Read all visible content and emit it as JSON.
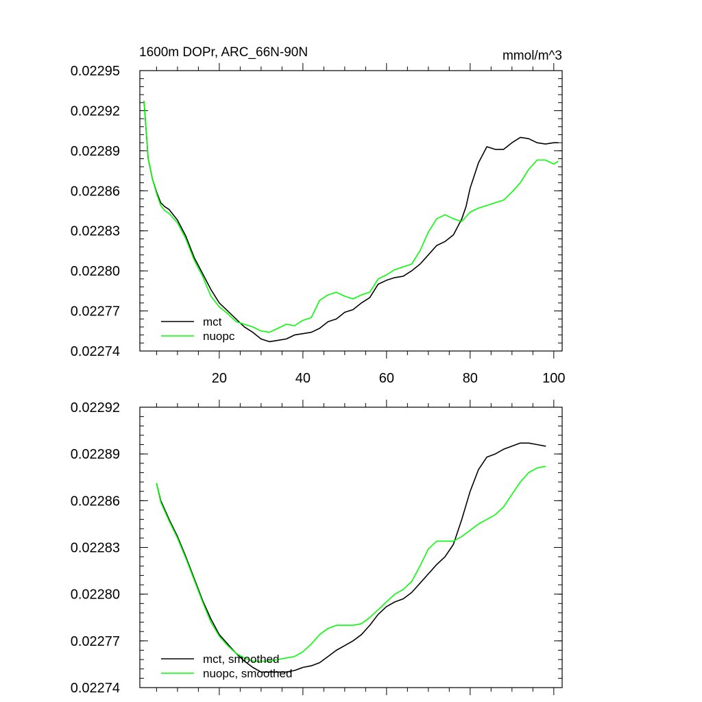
{
  "chart_data": [
    {
      "type": "line",
      "title": "1600m DOPr, ARC_66N-90N",
      "units": "mmol/m^3",
      "xlim": [
        1,
        102
      ],
      "ylim": [
        0.02274,
        0.02295
      ],
      "xticks": [
        20,
        40,
        60,
        80,
        100
      ],
      "xtick_labels": [
        "20",
        "40",
        "60",
        "80",
        "100"
      ],
      "yticks": [
        0.02274,
        0.02277,
        0.0228,
        0.02283,
        0.02286,
        0.02289,
        0.02292,
        0.02295
      ],
      "ytick_labels": [
        "0.02274",
        "0.02277",
        "0.02280",
        "0.02283",
        "0.02286",
        "0.02289",
        "0.02292",
        "0.02295"
      ],
      "legend_position": "bottom-left",
      "series": [
        {
          "name": "mct",
          "color": "#000000",
          "points": [
            [
              2,
              0.022927
            ],
            [
              3,
              0.022884
            ],
            [
              4,
              0.022869
            ],
            [
              5,
              0.022859
            ],
            [
              6,
              0.022851
            ],
            [
              7,
              0.022848
            ],
            [
              8,
              0.022846
            ],
            [
              10,
              0.022838
            ],
            [
              12,
              0.022826
            ],
            [
              14,
              0.02281
            ],
            [
              16,
              0.022798
            ],
            [
              18,
              0.022786
            ],
            [
              20,
              0.022776
            ],
            [
              22,
              0.02277
            ],
            [
              24,
              0.022764
            ],
            [
              26,
              0.022758
            ],
            [
              28,
              0.022754
            ],
            [
              30,
              0.022749
            ],
            [
              32,
              0.022747
            ],
            [
              34,
              0.022748
            ],
            [
              36,
              0.022749
            ],
            [
              38,
              0.022752
            ],
            [
              40,
              0.022753
            ],
            [
              42,
              0.022754
            ],
            [
              44,
              0.022757
            ],
            [
              46,
              0.022762
            ],
            [
              48,
              0.022764
            ],
            [
              50,
              0.022769
            ],
            [
              52,
              0.022771
            ],
            [
              54,
              0.022776
            ],
            [
              56,
              0.02278
            ],
            [
              58,
              0.02279
            ],
            [
              60,
              0.022793
            ],
            [
              62,
              0.022795
            ],
            [
              64,
              0.022796
            ],
            [
              66,
              0.0228
            ],
            [
              68,
              0.022805
            ],
            [
              70,
              0.022812
            ],
            [
              72,
              0.022819
            ],
            [
              74,
              0.022822
            ],
            [
              76,
              0.022827
            ],
            [
              78,
              0.022839
            ],
            [
              79,
              0.022848
            ],
            [
              80,
              0.022862
            ],
            [
              82,
              0.022881
            ],
            [
              84,
              0.022893
            ],
            [
              86,
              0.022891
            ],
            [
              88,
              0.022891
            ],
            [
              90,
              0.022896
            ],
            [
              92,
              0.0229
            ],
            [
              94,
              0.022899
            ],
            [
              96,
              0.022896
            ],
            [
              98,
              0.022895
            ],
            [
              100,
              0.022896
            ],
            [
              101,
              0.022896
            ]
          ]
        },
        {
          "name": "nuopc",
          "color": "#00ff00",
          "points": [
            [
              2,
              0.022927
            ],
            [
              3,
              0.022884
            ],
            [
              4,
              0.022869
            ],
            [
              5,
              0.022858
            ],
            [
              6,
              0.022849
            ],
            [
              7,
              0.022845
            ],
            [
              8,
              0.022843
            ],
            [
              10,
              0.022836
            ],
            [
              12,
              0.022824
            ],
            [
              14,
              0.022808
            ],
            [
              16,
              0.022796
            ],
            [
              18,
              0.022781
            ],
            [
              20,
              0.022773
            ],
            [
              22,
              0.022768
            ],
            [
              24,
              0.022762
            ],
            [
              26,
              0.02276
            ],
            [
              28,
              0.022758
            ],
            [
              30,
              0.022755
            ],
            [
              32,
              0.022754
            ],
            [
              34,
              0.022757
            ],
            [
              36,
              0.02276
            ],
            [
              38,
              0.022759
            ],
            [
              40,
              0.022763
            ],
            [
              42,
              0.022765
            ],
            [
              44,
              0.022778
            ],
            [
              46,
              0.022782
            ],
            [
              48,
              0.022784
            ],
            [
              50,
              0.022781
            ],
            [
              52,
              0.022779
            ],
            [
              54,
              0.022782
            ],
            [
              56,
              0.022784
            ],
            [
              58,
              0.022794
            ],
            [
              60,
              0.022797
            ],
            [
              62,
              0.022801
            ],
            [
              64,
              0.022803
            ],
            [
              66,
              0.022805
            ],
            [
              68,
              0.022815
            ],
            [
              70,
              0.022829
            ],
            [
              72,
              0.022839
            ],
            [
              74,
              0.022842
            ],
            [
              76,
              0.022839
            ],
            [
              78,
              0.022837
            ],
            [
              80,
              0.022844
            ],
            [
              82,
              0.022847
            ],
            [
              84,
              0.022849
            ],
            [
              86,
              0.022851
            ],
            [
              88,
              0.022853
            ],
            [
              90,
              0.022859
            ],
            [
              92,
              0.022866
            ],
            [
              94,
              0.022876
            ],
            [
              96,
              0.022883
            ],
            [
              98,
              0.022883
            ],
            [
              100,
              0.02288
            ],
            [
              101,
              0.022882
            ]
          ]
        }
      ]
    },
    {
      "type": "line",
      "title": "",
      "units": "",
      "xlim": [
        1,
        102
      ],
      "ylim": [
        0.02274,
        0.02292
      ],
      "xticks": [
        20,
        40,
        60,
        80,
        100
      ],
      "xtick_labels": [],
      "yticks": [
        0.02274,
        0.02277,
        0.0228,
        0.02283,
        0.02286,
        0.02289,
        0.02292
      ],
      "ytick_labels": [
        "0.02274",
        "0.02277",
        "0.02280",
        "0.02283",
        "0.02286",
        "0.02289",
        "0.02292"
      ],
      "legend_position": "bottom-left",
      "series": [
        {
          "name": "mct, smoothed",
          "color": "#000000",
          "points": [
            [
              5,
              0.022871
            ],
            [
              6,
              0.02286
            ],
            [
              8,
              0.022848
            ],
            [
              10,
              0.022837
            ],
            [
              12,
              0.022824
            ],
            [
              14,
              0.02281
            ],
            [
              16,
              0.022796
            ],
            [
              18,
              0.022784
            ],
            [
              20,
              0.022774
            ],
            [
              22,
              0.022768
            ],
            [
              24,
              0.022762
            ],
            [
              26,
              0.022757
            ],
            [
              28,
              0.022753
            ],
            [
              30,
              0.02275
            ],
            [
              32,
              0.02275
            ],
            [
              34,
              0.02275
            ],
            [
              36,
              0.02275
            ],
            [
              38,
              0.022751
            ],
            [
              40,
              0.022753
            ],
            [
              42,
              0.022754
            ],
            [
              44,
              0.022756
            ],
            [
              46,
              0.02276
            ],
            [
              48,
              0.022764
            ],
            [
              50,
              0.022767
            ],
            [
              52,
              0.02277
            ],
            [
              54,
              0.022774
            ],
            [
              56,
              0.02278
            ],
            [
              58,
              0.022787
            ],
            [
              60,
              0.022792
            ],
            [
              62,
              0.022795
            ],
            [
              64,
              0.022797
            ],
            [
              66,
              0.022801
            ],
            [
              68,
              0.022807
            ],
            [
              70,
              0.022813
            ],
            [
              72,
              0.022819
            ],
            [
              74,
              0.022824
            ],
            [
              76,
              0.022832
            ],
            [
              78,
              0.022848
            ],
            [
              80,
              0.022866
            ],
            [
              82,
              0.02288
            ],
            [
              84,
              0.022888
            ],
            [
              86,
              0.02289
            ],
            [
              88,
              0.022893
            ],
            [
              90,
              0.022895
            ],
            [
              92,
              0.022897
            ],
            [
              94,
              0.022897
            ],
            [
              96,
              0.022896
            ],
            [
              98,
              0.022895
            ]
          ]
        },
        {
          "name": "nuopc, smoothed",
          "color": "#00ff00",
          "points": [
            [
              5,
              0.022871
            ],
            [
              6,
              0.022859
            ],
            [
              8,
              0.022847
            ],
            [
              10,
              0.022836
            ],
            [
              12,
              0.022823
            ],
            [
              14,
              0.022809
            ],
            [
              16,
              0.022795
            ],
            [
              18,
              0.022782
            ],
            [
              20,
              0.022773
            ],
            [
              22,
              0.022767
            ],
            [
              24,
              0.022762
            ],
            [
              26,
              0.022759
            ],
            [
              28,
              0.022757
            ],
            [
              30,
              0.022757
            ],
            [
              32,
              0.022757
            ],
            [
              34,
              0.022758
            ],
            [
              36,
              0.022759
            ],
            [
              38,
              0.02276
            ],
            [
              40,
              0.022763
            ],
            [
              42,
              0.022768
            ],
            [
              44,
              0.022774
            ],
            [
              46,
              0.022778
            ],
            [
              48,
              0.02278
            ],
            [
              50,
              0.02278
            ],
            [
              52,
              0.02278
            ],
            [
              54,
              0.022781
            ],
            [
              56,
              0.022785
            ],
            [
              58,
              0.02279
            ],
            [
              60,
              0.022795
            ],
            [
              62,
              0.0228
            ],
            [
              64,
              0.022803
            ],
            [
              66,
              0.022808
            ],
            [
              68,
              0.022818
            ],
            [
              70,
              0.022829
            ],
            [
              72,
              0.022834
            ],
            [
              74,
              0.022834
            ],
            [
              76,
              0.022834
            ],
            [
              78,
              0.022837
            ],
            [
              80,
              0.022841
            ],
            [
              82,
              0.022845
            ],
            [
              84,
              0.022848
            ],
            [
              86,
              0.022851
            ],
            [
              88,
              0.022856
            ],
            [
              90,
              0.022864
            ],
            [
              92,
              0.022872
            ],
            [
              94,
              0.022878
            ],
            [
              96,
              0.022881
            ],
            [
              98,
              0.022882
            ]
          ]
        }
      ]
    }
  ]
}
